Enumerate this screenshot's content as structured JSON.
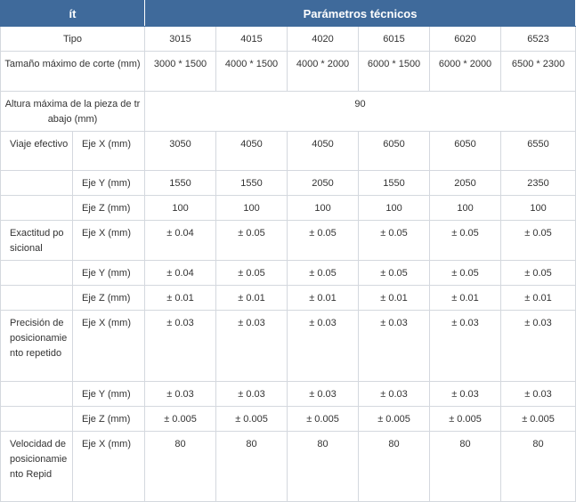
{
  "header": {
    "item_col": "ít",
    "params_col": "Parámetros técnicos"
  },
  "rows": {
    "tipo": {
      "label": "Tipo",
      "values": [
        "3015",
        "4015",
        "4020",
        "6015",
        "6020",
        "6523"
      ]
    },
    "tamano": {
      "label": "Tamaño máximo de corte (mm)",
      "values": [
        "3000 * 1500",
        "4000 * 1500",
        "4000 * 2000",
        "6000 * 1500",
        "6000 * 2000",
        "6500 * 2300"
      ]
    },
    "altura": {
      "label": "Altura máxima de la pieza de trabajo (mm)",
      "value": "90"
    },
    "viaje": {
      "label": "Viaje efectivo",
      "x": {
        "axis": "Eje X (mm)",
        "values": [
          "3050",
          "4050",
          "4050",
          "6050",
          "6050",
          "6550"
        ]
      },
      "y": {
        "axis": "Eje Y (mm)",
        "values": [
          "1550",
          "1550",
          "2050",
          "1550",
          "2050",
          "2350"
        ]
      },
      "z": {
        "axis": "Eje Z (mm)",
        "values": [
          "100",
          "100",
          "100",
          "100",
          "100",
          "100"
        ]
      }
    },
    "exactitud": {
      "label": "Exactitud posicional",
      "x": {
        "axis": "Eje X (mm)",
        "values": [
          "± 0.04",
          "± 0.05",
          "± 0.05",
          "± 0.05",
          "± 0.05",
          "± 0.05"
        ]
      },
      "y": {
        "axis": "Eje Y (mm)",
        "values": [
          "± 0.04",
          "± 0.05",
          "± 0.05",
          "± 0.05",
          "± 0.05",
          "± 0.05"
        ]
      },
      "z": {
        "axis": "Eje Z (mm)",
        "values": [
          "± 0.01",
          "± 0.01",
          "± 0.01",
          "± 0.01",
          "± 0.01",
          "± 0.01"
        ]
      }
    },
    "precision": {
      "label": "Precisión de posicionamiento repetido",
      "x": {
        "axis": "Eje X (mm)",
        "values": [
          "± 0.03",
          "± 0.03",
          "± 0.03",
          "± 0.03",
          "± 0.03",
          "± 0.03"
        ]
      },
      "y": {
        "axis": "Eje Y (mm)",
        "values": [
          "± 0.03",
          "± 0.03",
          "± 0.03",
          "± 0.03",
          "± 0.03",
          "± 0.03"
        ]
      },
      "z": {
        "axis": "Eje Z (mm)",
        "values": [
          "± 0.005",
          "± 0.005",
          "± 0.005",
          "± 0.005",
          "± 0.005",
          "± 0.005"
        ]
      }
    },
    "velocidad": {
      "label": "Velocidad de posicionamiento Repid",
      "x": {
        "axis": "Eje X (mm)",
        "values": [
          "80",
          "80",
          "80",
          "80",
          "80",
          "80"
        ]
      }
    }
  },
  "colors": {
    "header_bg": "#3f6a9b",
    "border": "#d4d8de"
  }
}
